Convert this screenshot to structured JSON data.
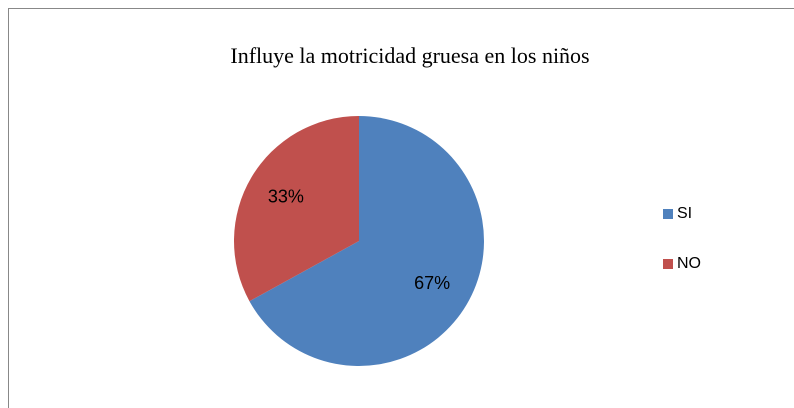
{
  "chart_data": {
    "type": "pie",
    "title": "Influye la motricidad gruesa en los niños",
    "categories": [
      "SI",
      "NO"
    ],
    "values": [
      67,
      33
    ],
    "value_labels": [
      "67%",
      "33%"
    ],
    "colors": [
      "#4f81bd",
      "#c0504d"
    ],
    "legend": "right"
  }
}
